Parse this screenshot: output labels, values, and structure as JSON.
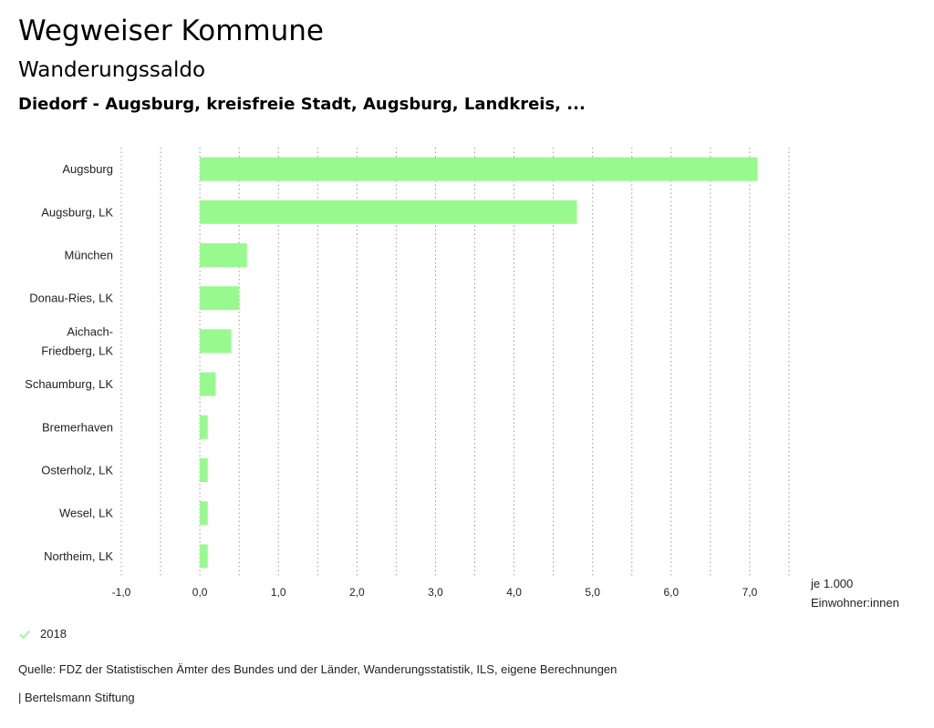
{
  "header": {
    "title": "Wegweiser Kommune",
    "subtitle": "Wanderungssaldo",
    "caption": "Diedorf - Augsburg, kreisfreie Stadt, Augsburg, Landkreis, ..."
  },
  "chart_data": {
    "type": "bar",
    "orientation": "horizontal",
    "categories": [
      "Augsburg",
      "Augsburg, LK",
      "München",
      "Donau-Ries, LK",
      "Aichach-Friedberg, LK",
      "Schaumburg, LK",
      "Bremerhaven",
      "Osterholz, LK",
      "Wesel, LK",
      "Northeim, LK"
    ],
    "category_lines": [
      [
        "Augsburg"
      ],
      [
        "Augsburg, LK"
      ],
      [
        "München"
      ],
      [
        "Donau-Ries, LK"
      ],
      [
        "Aichach-",
        "Friedberg, LK"
      ],
      [
        "Schaumburg, LK"
      ],
      [
        "Bremerhaven"
      ],
      [
        "Osterholz, LK"
      ],
      [
        "Wesel, LK"
      ],
      [
        "Northeim, LK"
      ]
    ],
    "series": [
      {
        "name": "2018",
        "values": [
          7.1,
          4.8,
          0.6,
          0.5,
          0.4,
          0.2,
          0.1,
          0.1,
          0.1,
          0.1
        ]
      }
    ],
    "xlim": [
      -1.0,
      7.5
    ],
    "xticks": [
      -1.0,
      0.0,
      1.0,
      2.0,
      3.0,
      4.0,
      5.0,
      6.0,
      7.0
    ],
    "xtick_labels": [
      "-1,0",
      "0,0",
      "1,0",
      "2,0",
      "3,0",
      "4,0",
      "5,0",
      "6,0",
      "7,0"
    ],
    "x_unit_label": [
      "je 1.000",
      "Einwohner:innen"
    ],
    "grid": true,
    "bar_color": "#98f98f"
  },
  "legend": {
    "label": "2018",
    "icon": "check-icon",
    "color": "#98f98f"
  },
  "footer": {
    "source": "Quelle: FDZ der Statistischen Ämter des Bundes und der Länder, Wanderungsstatistik, ILS, eigene Berechnungen",
    "brand": "| Bertelsmann Stiftung"
  }
}
